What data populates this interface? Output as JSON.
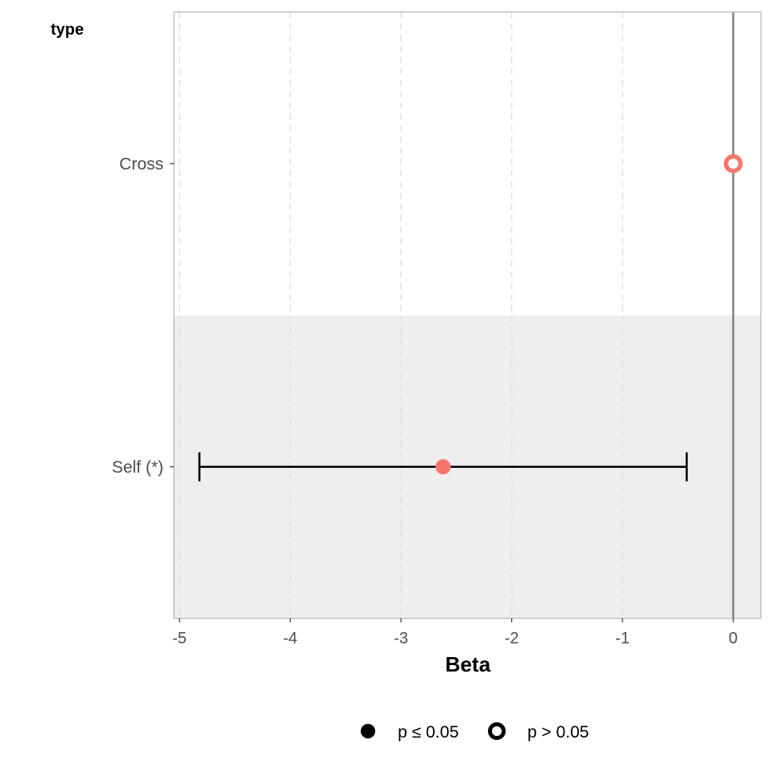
{
  "chart_data": {
    "type": "forest",
    "ylabel": "type",
    "xlabel": "Beta",
    "xlim": [
      -5.05,
      0.25
    ],
    "x_ticks": [
      -5,
      -4,
      -3,
      -2,
      -1,
      0
    ],
    "x_tick_labels": [
      "-5",
      "-4",
      "-3",
      "-2",
      "-1",
      "0"
    ],
    "reference_line": 0,
    "grid": "vertical dashed",
    "categories": [
      "Cross",
      "Self (*)"
    ],
    "points": [
      {
        "label": "Cross",
        "estimate": 0.0,
        "lower": null,
        "upper": null,
        "significant": false
      },
      {
        "label": "Self (*)",
        "estimate": -2.62,
        "lower": -4.82,
        "upper": -0.42,
        "significant": true
      }
    ],
    "point_color": "#f8766d",
    "shaded_band_color": "#eeeeee",
    "legend": {
      "position": "bottom",
      "items": [
        {
          "label": "p ≤ 0.05",
          "shape": "filled-circle"
        },
        {
          "label": "p > 0.05",
          "shape": "hollow-circle"
        }
      ]
    }
  }
}
